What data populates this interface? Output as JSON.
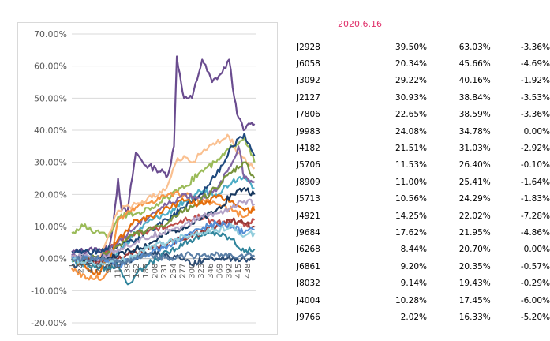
{
  "date": "2020.6.16",
  "table": {
    "rows": [
      [
        "J2928",
        "39.50%",
        "63.03%",
        "-3.36%"
      ],
      [
        "J6058",
        "20.34%",
        "45.66%",
        "-4.69%"
      ],
      [
        "J3092",
        "29.22%",
        "40.16%",
        "-1.92%"
      ],
      [
        "J2127",
        "30.93%",
        "38.84%",
        "-3.53%"
      ],
      [
        "J7806",
        "22.65%",
        "38.59%",
        "-3.36%"
      ],
      [
        "J9983",
        "24.08%",
        "34.78%",
        "0.00%"
      ],
      [
        "J4182",
        "21.51%",
        "31.03%",
        "-2.92%"
      ],
      [
        "J5706",
        "11.53%",
        "26.40%",
        "-0.10%"
      ],
      [
        "J8909",
        "11.00%",
        "25.41%",
        "-1.64%"
      ],
      [
        "J5713",
        "10.56%",
        "24.29%",
        "-1.83%"
      ],
      [
        "J4921",
        "14.25%",
        "22.02%",
        "-7.28%"
      ],
      [
        "J9684",
        "17.62%",
        "21.95%",
        "-4.86%"
      ],
      [
        "J6268",
        "8.44%",
        "20.70%",
        "0.00%"
      ],
      [
        "J6861",
        "9.20%",
        "20.35%",
        "-0.57%"
      ],
      [
        "J8032",
        "9.14%",
        "19.43%",
        "-0.29%"
      ],
      [
        "J4004",
        "10.28%",
        "17.45%",
        "-6.00%"
      ],
      [
        "J9766",
        "2.02%",
        "16.33%",
        "-5.20%"
      ]
    ]
  },
  "chart_data": {
    "type": "line",
    "ylim": [
      -0.2,
      0.7
    ],
    "xlim": [
      1,
      460
    ],
    "ytick_labels": [
      "70.00%",
      "60.00%",
      "50.00%",
      "40.00%",
      "30.00%",
      "20.00%",
      "10.00%",
      "0.00%",
      "-10.00%",
      "-20.00%"
    ],
    "ytick_values": [
      0.7,
      0.6,
      0.5,
      0.4,
      0.3,
      0.2,
      0.1,
      0.0,
      -0.1,
      -0.2
    ],
    "xtick_labels": [
      "1",
      "24",
      "47",
      "70",
      "93",
      "116",
      "139",
      "162",
      "185",
      "208",
      "231",
      "254",
      "277",
      "300",
      "323",
      "346",
      "369",
      "392",
      "415",
      "438"
    ],
    "xtick_values": [
      1,
      24,
      47,
      70,
      93,
      116,
      139,
      162,
      185,
      208,
      231,
      254,
      277,
      300,
      323,
      346,
      369,
      392,
      415,
      438
    ],
    "grid": "horizontal",
    "series": [
      {
        "color": "#6a4c8f",
        "values": [
          [
            1,
            0.02
          ],
          [
            70,
            0.03
          ],
          [
            93,
            0.03
          ],
          [
            105,
            0.12
          ],
          [
            116,
            0.25
          ],
          [
            125,
            0.15
          ],
          [
            140,
            0.15
          ],
          [
            160,
            0.33
          ],
          [
            185,
            0.29
          ],
          [
            210,
            0.28
          ],
          [
            240,
            0.26
          ],
          [
            255,
            0.35
          ],
          [
            262,
            0.63
          ],
          [
            280,
            0.5
          ],
          [
            300,
            0.5
          ],
          [
            325,
            0.62
          ],
          [
            350,
            0.55
          ],
          [
            375,
            0.58
          ],
          [
            392,
            0.62
          ],
          [
            405,
            0.5
          ],
          [
            415,
            0.44
          ],
          [
            428,
            0.4
          ],
          [
            445,
            0.42
          ],
          [
            455,
            0.42
          ]
        ]
      },
      {
        "color": "#9bbb59",
        "values": [
          [
            1,
            0.08
          ],
          [
            30,
            0.1
          ],
          [
            70,
            0.08
          ],
          [
            93,
            0.07
          ],
          [
            116,
            0.13
          ],
          [
            160,
            0.14
          ],
          [
            200,
            0.16
          ],
          [
            240,
            0.19
          ],
          [
            280,
            0.22
          ],
          [
            320,
            0.27
          ],
          [
            360,
            0.3
          ],
          [
            400,
            0.35
          ],
          [
            430,
            0.38
          ],
          [
            455,
            0.3
          ]
        ]
      },
      {
        "color": "#f79646",
        "values": [
          [
            1,
            -0.03
          ],
          [
            40,
            -0.06
          ],
          [
            80,
            -0.06
          ],
          [
            93,
            -0.03
          ],
          [
            116,
            0.12
          ],
          [
            160,
            0.16
          ],
          [
            200,
            0.18
          ],
          [
            240,
            0.2
          ],
          [
            280,
            0.2
          ],
          [
            320,
            0.18
          ],
          [
            360,
            0.17
          ],
          [
            400,
            0.15
          ],
          [
            430,
            0.13
          ],
          [
            455,
            0.16
          ]
        ]
      },
      {
        "color": "#fac090",
        "values": [
          [
            1,
            0.0
          ],
          [
            70,
            0.0
          ],
          [
            116,
            0.15
          ],
          [
            160,
            0.17
          ],
          [
            200,
            0.19
          ],
          [
            240,
            0.23
          ],
          [
            260,
            0.3
          ],
          [
            280,
            0.32
          ],
          [
            300,
            0.3
          ],
          [
            330,
            0.34
          ],
          [
            360,
            0.36
          ],
          [
            392,
            0.38
          ],
          [
            415,
            0.33
          ],
          [
            455,
            0.28
          ]
        ]
      },
      {
        "color": "#4bacc6",
        "values": [
          [
            1,
            -0.01
          ],
          [
            70,
            -0.02
          ],
          [
            116,
            0.02
          ],
          [
            160,
            0.08
          ],
          [
            200,
            0.12
          ],
          [
            240,
            0.14
          ],
          [
            280,
            0.18
          ],
          [
            320,
            0.21
          ],
          [
            360,
            0.2
          ],
          [
            400,
            0.24
          ],
          [
            430,
            0.26
          ],
          [
            455,
            0.22
          ]
        ]
      },
      {
        "color": "#1f497d",
        "values": [
          [
            1,
            0.02
          ],
          [
            70,
            0.02
          ],
          [
            116,
            0.04
          ],
          [
            160,
            0.06
          ],
          [
            200,
            0.09
          ],
          [
            240,
            0.12
          ],
          [
            280,
            0.16
          ],
          [
            320,
            0.2
          ],
          [
            360,
            0.26
          ],
          [
            400,
            0.35
          ],
          [
            430,
            0.39
          ],
          [
            455,
            0.32
          ]
        ]
      },
      {
        "color": "#c0504d",
        "values": [
          [
            1,
            0.0
          ],
          [
            70,
            -0.01
          ],
          [
            116,
            0.06
          ],
          [
            160,
            0.08
          ],
          [
            200,
            0.09
          ],
          [
            240,
            0.1
          ],
          [
            280,
            0.12
          ],
          [
            320,
            0.13
          ],
          [
            360,
            0.11
          ],
          [
            400,
            0.12
          ],
          [
            430,
            0.1
          ],
          [
            455,
            0.12
          ]
        ]
      },
      {
        "color": "#8064a2",
        "values": [
          [
            1,
            0.01
          ],
          [
            70,
            0.0
          ],
          [
            116,
            0.05
          ],
          [
            160,
            0.1
          ],
          [
            200,
            0.14
          ],
          [
            240,
            0.17
          ],
          [
            280,
            0.2
          ],
          [
            320,
            0.19
          ],
          [
            360,
            0.21
          ],
          [
            400,
            0.3
          ],
          [
            415,
            0.35
          ],
          [
            430,
            0.25
          ],
          [
            455,
            0.24
          ]
        ]
      },
      {
        "color": "#2c4d75",
        "values": [
          [
            1,
            -0.02
          ],
          [
            70,
            -0.02
          ],
          [
            116,
            -0.02
          ],
          [
            160,
            0.0
          ],
          [
            200,
            0.02
          ],
          [
            240,
            0.01
          ],
          [
            280,
            0.0
          ],
          [
            300,
            -0.02
          ],
          [
            330,
            0.0
          ],
          [
            360,
            0.0
          ],
          [
            400,
            0.0
          ],
          [
            455,
            0.0
          ]
        ]
      },
      {
        "color": "#31859c",
        "values": [
          [
            1,
            0.0
          ],
          [
            70,
            -0.03
          ],
          [
            116,
            -0.02
          ],
          [
            140,
            -0.08
          ],
          [
            160,
            -0.05
          ],
          [
            200,
            -0.01
          ],
          [
            240,
            0.02
          ],
          [
            280,
            0.05
          ],
          [
            320,
            0.07
          ],
          [
            360,
            0.08
          ],
          [
            400,
            0.06
          ],
          [
            430,
            0.02
          ],
          [
            455,
            0.03
          ]
        ]
      },
      {
        "color": "#77933c",
        "values": [
          [
            1,
            0.0
          ],
          [
            70,
            0.0
          ],
          [
            116,
            0.04
          ],
          [
            160,
            0.08
          ],
          [
            200,
            0.09
          ],
          [
            240,
            0.11
          ],
          [
            280,
            0.15
          ],
          [
            320,
            0.18
          ],
          [
            360,
            0.22
          ],
          [
            400,
            0.27
          ],
          [
            430,
            0.3
          ],
          [
            455,
            0.25
          ]
        ]
      },
      {
        "color": "#e46c0a",
        "values": [
          [
            1,
            0.0
          ],
          [
            70,
            -0.05
          ],
          [
            116,
            0.06
          ],
          [
            160,
            0.12
          ],
          [
            200,
            0.13
          ],
          [
            240,
            0.16
          ],
          [
            280,
            0.18
          ],
          [
            320,
            0.17
          ],
          [
            360,
            0.19
          ],
          [
            400,
            0.18
          ],
          [
            430,
            0.15
          ],
          [
            455,
            0.15
          ]
        ]
      },
      {
        "color": "#953735",
        "values": [
          [
            1,
            0.0
          ],
          [
            70,
            -0.01
          ],
          [
            116,
            0.0
          ],
          [
            160,
            0.02
          ],
          [
            200,
            0.03
          ],
          [
            240,
            0.05
          ],
          [
            280,
            0.06
          ],
          [
            320,
            0.08
          ],
          [
            360,
            0.1
          ],
          [
            400,
            0.12
          ],
          [
            430,
            0.11
          ],
          [
            455,
            0.1
          ]
        ]
      },
      {
        "color": "#17375e",
        "values": [
          [
            1,
            0.0
          ],
          [
            70,
            0.0
          ],
          [
            116,
            0.01
          ],
          [
            160,
            0.03
          ],
          [
            200,
            0.05
          ],
          [
            240,
            0.08
          ],
          [
            280,
            0.1
          ],
          [
            320,
            0.12
          ],
          [
            360,
            0.15
          ],
          [
            400,
            0.2
          ],
          [
            430,
            0.22
          ],
          [
            455,
            0.2
          ]
        ]
      },
      {
        "color": "#b3a2c7",
        "values": [
          [
            1,
            0.01
          ],
          [
            70,
            0.0
          ],
          [
            116,
            0.03
          ],
          [
            160,
            0.05
          ],
          [
            200,
            0.07
          ],
          [
            240,
            0.09
          ],
          [
            280,
            0.1
          ],
          [
            320,
            0.13
          ],
          [
            360,
            0.14
          ],
          [
            400,
            0.16
          ],
          [
            430,
            0.18
          ],
          [
            455,
            0.17
          ]
        ]
      },
      {
        "color": "#558ed5",
        "values": [
          [
            1,
            0.0
          ],
          [
            70,
            0.0
          ],
          [
            116,
            -0.02
          ],
          [
            160,
            0.0
          ],
          [
            200,
            0.02
          ],
          [
            240,
            0.04
          ],
          [
            280,
            0.07
          ],
          [
            320,
            0.09
          ],
          [
            360,
            0.11
          ],
          [
            400,
            0.1
          ],
          [
            430,
            0.08
          ],
          [
            455,
            0.09
          ]
        ]
      },
      {
        "color": "#92cddc",
        "values": [
          [
            1,
            0.0
          ],
          [
            70,
            -0.02
          ],
          [
            116,
            -0.01
          ],
          [
            160,
            0.01
          ],
          [
            200,
            0.04
          ],
          [
            240,
            0.05
          ],
          [
            280,
            0.07
          ],
          [
            320,
            0.08
          ],
          [
            360,
            0.09
          ],
          [
            400,
            0.1
          ],
          [
            430,
            0.07
          ],
          [
            455,
            0.08
          ]
        ]
      },
      {
        "color": "#5b7fa6",
        "values": [
          [
            1,
            0.0
          ],
          [
            70,
            0.0
          ],
          [
            116,
            -0.01
          ],
          [
            160,
            0.0
          ],
          [
            200,
            0.01
          ],
          [
            240,
            0.0
          ],
          [
            270,
            0.01
          ],
          [
            300,
            0.01
          ],
          [
            340,
            0.01
          ],
          [
            380,
            0.01
          ],
          [
            420,
            0.01
          ],
          [
            455,
            0.01
          ]
        ]
      }
    ]
  }
}
